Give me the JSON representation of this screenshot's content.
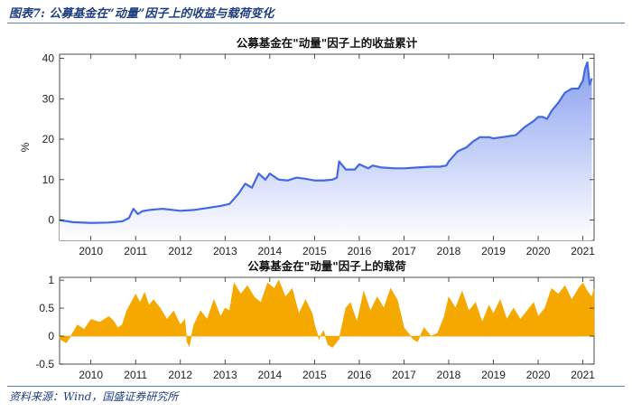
{
  "header": {
    "caption": "图表7: 公募基金在“动量”因子上的收益与载荷变化"
  },
  "footer": {
    "source": "资料来源：Wind，国盛证券研究所"
  },
  "colors": {
    "line": "#4169e1",
    "fill_top": "#8aa0f0",
    "fill_bottom": "#ffffff",
    "bar": "#f5a800",
    "caption": "#1f3e80"
  },
  "chart_data": [
    {
      "type": "area",
      "title": "公募基金在\"动量\"因子上的收益累计",
      "xlabel": "",
      "ylabel": "%",
      "xlim": [
        2009.3,
        2021.25
      ],
      "ylim": [
        -5,
        41
      ],
      "yticks": [
        0,
        10,
        20,
        30,
        40
      ],
      "xticks": [
        2010,
        2011,
        2012,
        2013,
        2014,
        2015,
        2016,
        2017,
        2018,
        2019,
        2020,
        2021
      ],
      "grid": false,
      "series": [
        {
          "x": [
            2009.3,
            2009.6,
            2010.0,
            2010.4,
            2010.7,
            2010.85,
            2010.95,
            2011.05,
            2011.15,
            2011.3,
            2011.6,
            2012.0,
            2012.3,
            2012.6,
            2012.9,
            2013.1,
            2013.3,
            2013.45,
            2013.6,
            2013.75,
            2013.9,
            2014.0,
            2014.2,
            2014.4,
            2014.6,
            2014.8,
            2015.0,
            2015.2,
            2015.4,
            2015.5,
            2015.55,
            2015.7,
            2015.9,
            2016.0,
            2016.2,
            2016.3,
            2016.5,
            2016.8,
            2017.0,
            2017.3,
            2017.6,
            2017.8,
            2017.95,
            2018.0,
            2018.2,
            2018.4,
            2018.55,
            2018.7,
            2018.9,
            2019.0,
            2019.2,
            2019.5,
            2019.7,
            2019.9,
            2020.0,
            2020.1,
            2020.2,
            2020.3,
            2020.45,
            2020.6,
            2020.75,
            2020.9,
            2021.0,
            2021.05,
            2021.1,
            2021.15,
            2021.2
          ],
          "y": [
            0,
            -0.5,
            -0.7,
            -0.6,
            -0.3,
            0.5,
            2.8,
            1.5,
            2.2,
            2.5,
            2.8,
            2.3,
            2.5,
            3.0,
            3.5,
            4.0,
            6.5,
            9.0,
            8.0,
            11.5,
            10.0,
            11.5,
            10.0,
            9.8,
            10.5,
            10.2,
            9.8,
            9.8,
            10.0,
            10.5,
            14.5,
            12.5,
            12.5,
            13.8,
            12.8,
            13.5,
            13.0,
            12.8,
            12.8,
            13.0,
            13.2,
            13.2,
            13.5,
            14.5,
            17.0,
            18.0,
            19.5,
            20.5,
            20.5,
            20.2,
            20.5,
            21.0,
            23.0,
            24.5,
            25.5,
            25.5,
            25.0,
            27.0,
            29.0,
            31.5,
            32.5,
            32.5,
            34.5,
            37.5,
            39.0,
            33.5,
            35.0
          ]
        }
      ]
    },
    {
      "type": "area",
      "title": "公募基金在\"动量\"因子上的载荷",
      "xlabel": "",
      "ylabel": "",
      "xlim": [
        2009.3,
        2021.25
      ],
      "ylim": [
        -0.5,
        1.05
      ],
      "yticks": [
        -0.5,
        0,
        0.5,
        1
      ],
      "ytick_labels": [
        "-0.5",
        "0",
        "0.5",
        "1"
      ],
      "xticks": [
        2010,
        2011,
        2012,
        2013,
        2014,
        2015,
        2016,
        2017,
        2018,
        2019,
        2020,
        2021
      ],
      "grid": false,
      "series": [
        {
          "x": [
            2009.3,
            2009.45,
            2009.55,
            2009.7,
            2009.85,
            2010.0,
            2010.2,
            2010.4,
            2010.5,
            2010.6,
            2010.7,
            2010.8,
            2010.9,
            2011.0,
            2011.1,
            2011.2,
            2011.3,
            2011.4,
            2011.55,
            2011.7,
            2011.85,
            2012.0,
            2012.1,
            2012.15,
            2012.2,
            2012.3,
            2012.45,
            2012.6,
            2012.75,
            2012.9,
            2013.0,
            2013.1,
            2013.2,
            2013.35,
            2013.5,
            2013.65,
            2013.8,
            2013.95,
            2014.1,
            2014.2,
            2014.35,
            2014.5,
            2014.65,
            2014.8,
            2014.95,
            2015.0,
            2015.1,
            2015.2,
            2015.3,
            2015.4,
            2015.55,
            2015.7,
            2015.8,
            2015.95,
            2016.1,
            2016.25,
            2016.4,
            2016.55,
            2016.7,
            2016.85,
            2017.0,
            2017.1,
            2017.2,
            2017.3,
            2017.45,
            2017.6,
            2017.75,
            2017.9,
            2018.0,
            2018.15,
            2018.3,
            2018.45,
            2018.6,
            2018.75,
            2018.9,
            2019.0,
            2019.15,
            2019.3,
            2019.45,
            2019.6,
            2019.75,
            2019.9,
            2020.0,
            2020.15,
            2020.3,
            2020.45,
            2020.6,
            2020.75,
            2020.9,
            2021.0,
            2021.1,
            2021.2,
            2021.25
          ],
          "y": [
            -0.05,
            -0.12,
            0.0,
            0.2,
            0.12,
            0.3,
            0.25,
            0.35,
            0.28,
            0.15,
            0.2,
            0.45,
            0.6,
            0.75,
            0.6,
            0.78,
            0.55,
            0.65,
            0.5,
            0.3,
            0.45,
            0.2,
            0.3,
            -0.1,
            -0.18,
            0.2,
            0.45,
            0.3,
            0.65,
            0.35,
            0.5,
            0.45,
            0.95,
            0.75,
            0.9,
            0.7,
            0.6,
            0.95,
            0.85,
            1.0,
            0.7,
            0.85,
            0.4,
            0.65,
            0.4,
            0.2,
            -0.05,
            0.1,
            -0.15,
            -0.2,
            -0.05,
            0.5,
            0.6,
            0.25,
            0.8,
            0.45,
            0.7,
            0.5,
            0.85,
            0.65,
            0.15,
            0.05,
            -0.05,
            -0.1,
            0.15,
            0.0,
            0.05,
            0.35,
            0.7,
            0.5,
            0.8,
            0.45,
            0.6,
            0.25,
            0.55,
            0.4,
            0.65,
            0.3,
            0.5,
            0.3,
            0.45,
            0.6,
            0.35,
            0.5,
            0.85,
            0.75,
            0.9,
            0.65,
            0.85,
            0.95,
            0.8,
            0.7,
            0.85
          ]
        }
      ]
    }
  ]
}
